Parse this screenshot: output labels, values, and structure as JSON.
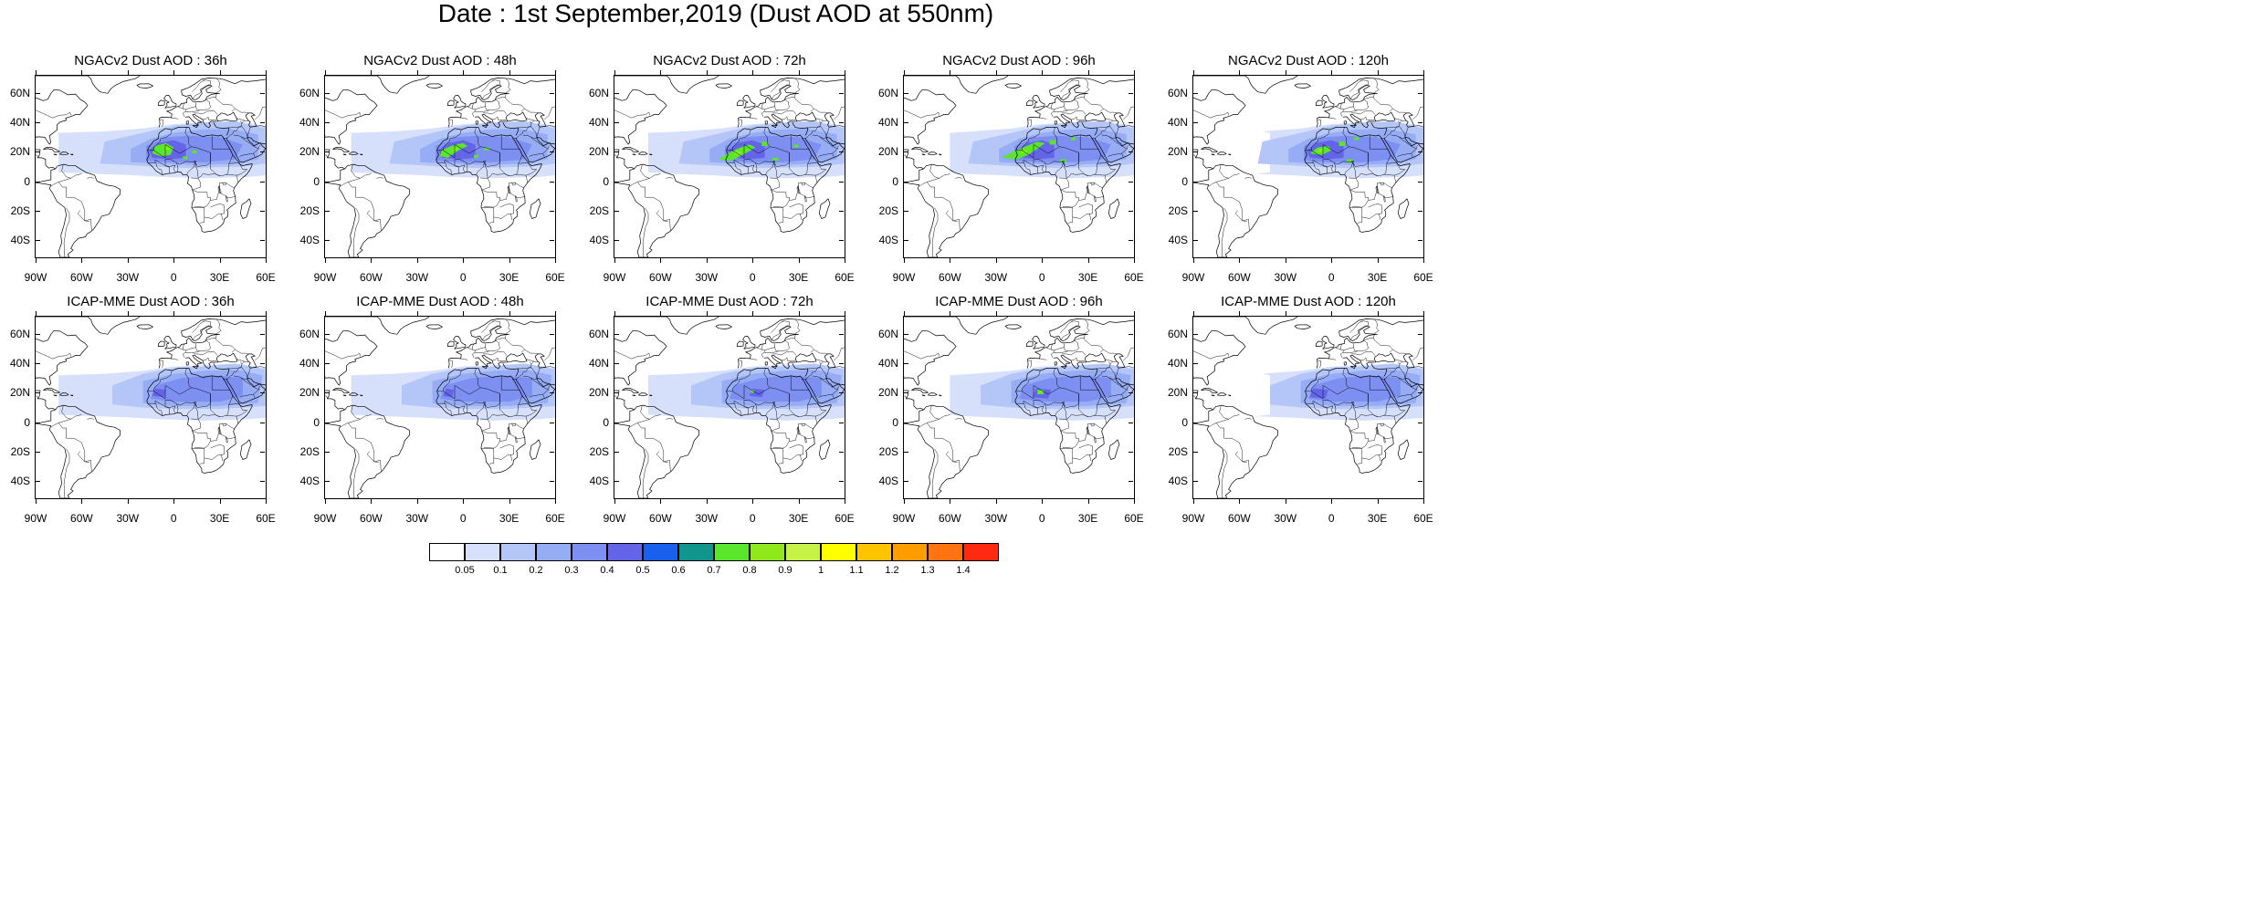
{
  "title": "Date : 1st September,2019 (Dust AOD at 550nm)",
  "panels": [
    {
      "title": "NGACv2 Dust AOD : 36h",
      "model": "NGACv2",
      "lead": "36h"
    },
    {
      "title": "NGACv2 Dust AOD : 48h",
      "model": "NGACv2",
      "lead": "48h"
    },
    {
      "title": "NGACv2 Dust AOD : 72h",
      "model": "NGACv2",
      "lead": "72h"
    },
    {
      "title": "NGACv2 Dust AOD : 96h",
      "model": "NGACv2",
      "lead": "96h"
    },
    {
      "title": "NGACv2 Dust AOD : 120h",
      "model": "NGACv2",
      "lead": "120h"
    },
    {
      "title": "ICAP-MME Dust AOD : 36h",
      "model": "ICAP-MME",
      "lead": "36h"
    },
    {
      "title": "ICAP-MME Dust AOD : 48h",
      "model": "ICAP-MME",
      "lead": "48h"
    },
    {
      "title": "ICAP-MME Dust AOD : 72h",
      "model": "ICAP-MME",
      "lead": "72h"
    },
    {
      "title": "ICAP-MME Dust AOD : 96h",
      "model": "ICAP-MME",
      "lead": "96h"
    },
    {
      "title": "ICAP-MME Dust AOD : 120h",
      "model": "ICAP-MME",
      "lead": "120h"
    }
  ],
  "lat_labels": [
    "60N",
    "40N",
    "20N",
    "0",
    "20S",
    "40S"
  ],
  "lon_labels": [
    "90W",
    "60W",
    "30W",
    "0",
    "30E",
    "60E"
  ],
  "colorbar": {
    "labels": [
      "0.05",
      "0.1",
      "0.2",
      "0.3",
      "0.4",
      "0.5",
      "0.6",
      "0.7",
      "0.8",
      "0.9",
      "1",
      "1.1",
      "1.2",
      "1.3",
      "1.4"
    ],
    "colors": [
      "#ffffff",
      "#d6e0fb",
      "#b4c6f8",
      "#96acf4",
      "#7d8ff0",
      "#6464e8",
      "#1a60ee",
      "#10968f",
      "#5ae62a",
      "#8ee81a",
      "#c5f244",
      "#ffff00",
      "#ffc400",
      "#ff9c00",
      "#ff7410",
      "#ff2a10"
    ]
  }
}
